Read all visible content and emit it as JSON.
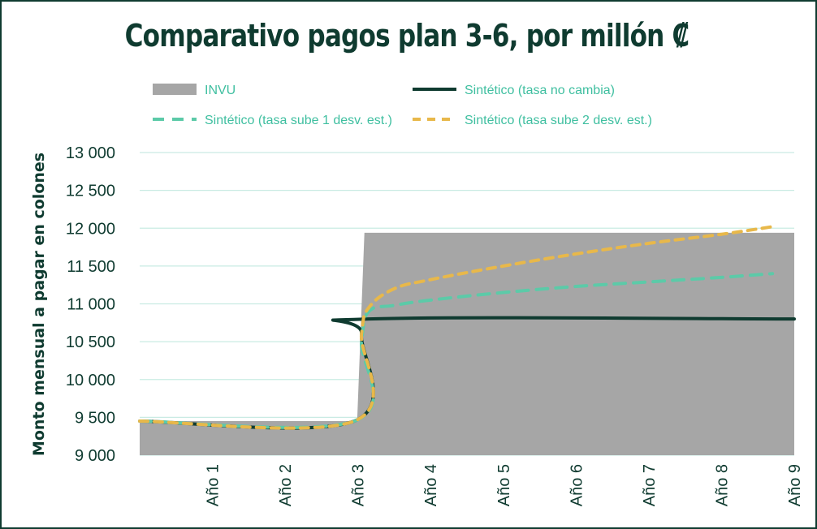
{
  "chart_data": {
    "type": "area",
    "title": "Comparativo pagos plan 3-6, por millón ₡",
    "ylabel": "Monto mensual a pagar en colones",
    "xlabel": "",
    "ylim": [
      9000,
      13000
    ],
    "xlim": [
      0,
      9
    ],
    "y_ticks": [
      9000,
      9500,
      10000,
      10500,
      11000,
      11500,
      12000,
      12500,
      13000
    ],
    "y_tick_labels": [
      "9 000",
      "9 500",
      "10 000",
      "10 500",
      "11 000",
      "11 500",
      "12 000",
      "12 500",
      "13 000"
    ],
    "x_ticks": [
      1,
      2,
      3,
      4,
      5,
      6,
      7,
      8,
      9
    ],
    "x_tick_labels": [
      "Año 1",
      "Año 2",
      "Año 3",
      "Año 4",
      "Año 5",
      "Año 6",
      "Año 7",
      "Año 8",
      "Año 9"
    ],
    "grid": "horizontal",
    "legend_position": "top",
    "series": [
      {
        "name": "INVU",
        "style": "area",
        "color": "#a6a6a6",
        "x": [
          0,
          2.99,
          3.09,
          9
        ],
        "y": [
          9450,
          9450,
          11940,
          11940
        ]
      },
      {
        "name": "Sintético (tasa no cambia)",
        "style": "solid",
        "color": "#0f3b30",
        "x": [
          0,
          2.95,
          3.05,
          3.15,
          9
        ],
        "y": [
          9450,
          9450,
          10600,
          10800,
          10800
        ]
      },
      {
        "name": "Sintético (tasa sube 1 desv. est.)",
        "style": "dashed",
        "color": "#5ccaa8",
        "x": [
          0,
          2.95,
          3.05,
          3.15,
          3.5,
          4,
          5,
          6,
          7,
          8,
          8.7
        ],
        "y": [
          9450,
          9450,
          10500,
          10900,
          10980,
          11050,
          11150,
          11230,
          11290,
          11350,
          11400
        ]
      },
      {
        "name": "Sintético (tasa sube 2 desv. est.)",
        "style": "dashed",
        "color": "#e8b84a",
        "x": [
          0,
          2.95,
          3.05,
          3.15,
          3.5,
          4,
          5,
          6,
          7,
          8,
          8.7
        ],
        "y": [
          9450,
          9450,
          10600,
          10950,
          11200,
          11320,
          11500,
          11660,
          11800,
          11920,
          12020
        ]
      }
    ]
  }
}
